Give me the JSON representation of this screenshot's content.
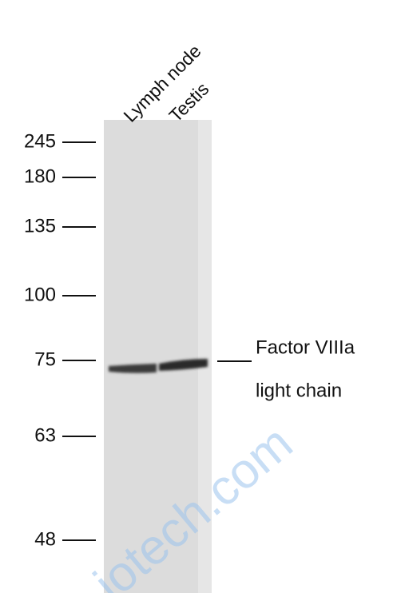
{
  "lanes": [
    "Lymph node",
    "Testis"
  ],
  "markers": [
    245,
    180,
    135,
    100,
    75,
    63,
    48
  ],
  "band_label": [
    "Factor VIIIa",
    "light chain"
  ],
  "watermark": "iotech.com"
}
